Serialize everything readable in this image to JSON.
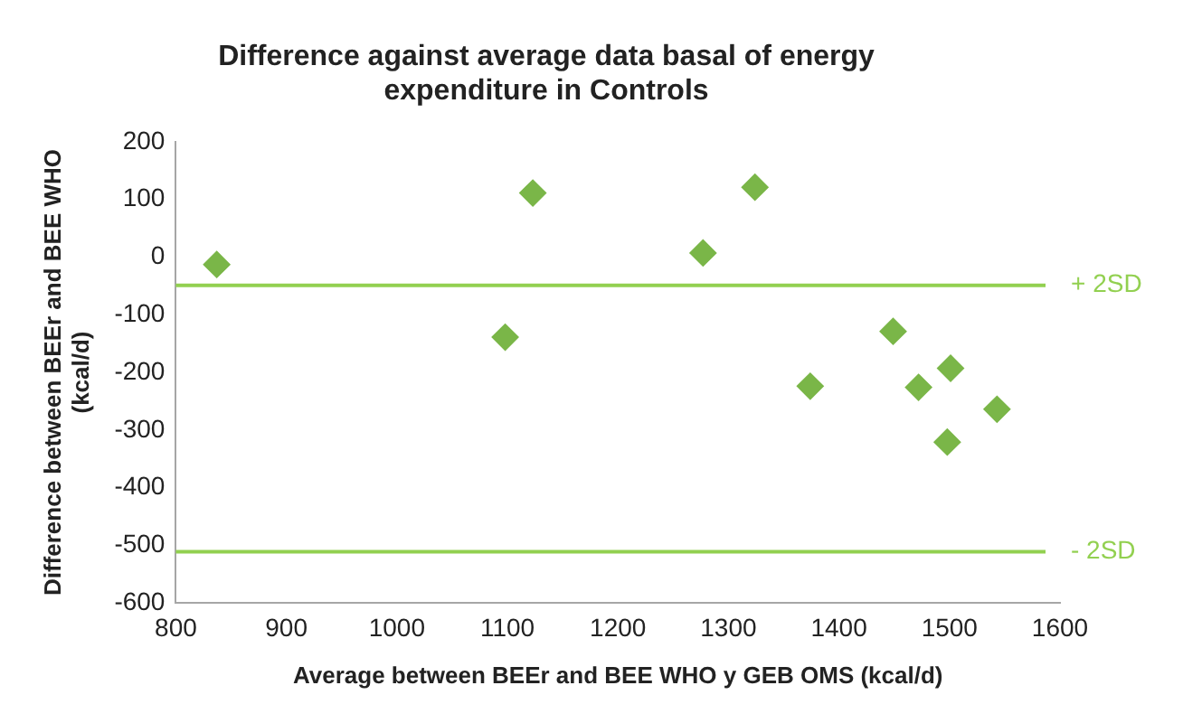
{
  "chart_data": {
    "type": "scatter",
    "title": "Difference against average data basal of energy expenditure in Controls",
    "xlabel": "Average between BEEr and BEE WHO y GEB OMS (kcal/d)",
    "ylabel": "Difference between BEEr and BEE WHO (kcal/d)",
    "x": [
      837,
      1098,
      1123,
      1277,
      1324,
      1374,
      1449,
      1472,
      1501,
      1498,
      1543
    ],
    "values": [
      -13,
      -139,
      111,
      7,
      121,
      -224,
      -129,
      -226,
      -193,
      -321,
      -264
    ],
    "color": "#7ab648",
    "marker": "diamond",
    "legend": false,
    "grid": false,
    "xlim": [
      800,
      1600
    ],
    "xticks": [
      800,
      900,
      1000,
      1100,
      1200,
      1300,
      1400,
      1500,
      1600
    ],
    "ylim": [
      -600,
      200
    ],
    "yticks": [
      -600,
      -500,
      -400,
      -300,
      -200,
      -100,
      0,
      100,
      200
    ],
    "ref_lines": [
      {
        "axis": "y",
        "value": -49,
        "label": "+ 2SD",
        "color": "#92d050"
      },
      {
        "axis": "y",
        "value": -511,
        "label": "- 2SD",
        "color": "#92d050"
      }
    ]
  }
}
